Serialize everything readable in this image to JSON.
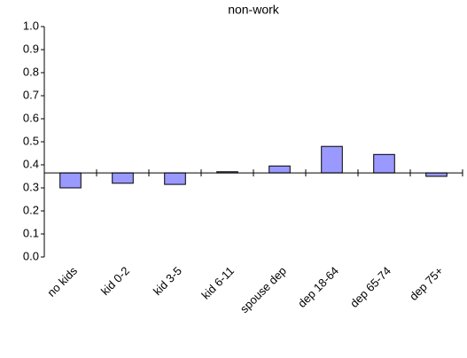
{
  "chart_data": {
    "type": "bar",
    "title": "non-work",
    "categories": [
      "no kids",
      "kid 0-2",
      "kid 3-5",
      "kid 6-11",
      "spouse dep",
      "dep 18-64",
      "dep 65-74",
      "dep 75+"
    ],
    "values": [
      0.3,
      0.32,
      0.315,
      0.37,
      0.395,
      0.48,
      0.445,
      0.35
    ],
    "color": "#9999ff",
    "baseline": 0.365,
    "ylim": [
      0,
      1
    ],
    "yticks": [
      {
        "value": 0,
        "label": "0.0"
      },
      0.1,
      0.2,
      0.3,
      0.4,
      0.5,
      0.6,
      0.7,
      0.8,
      0.9,
      {
        "value": 1,
        "label": "1.0"
      }
    ],
    "grid": false
  }
}
